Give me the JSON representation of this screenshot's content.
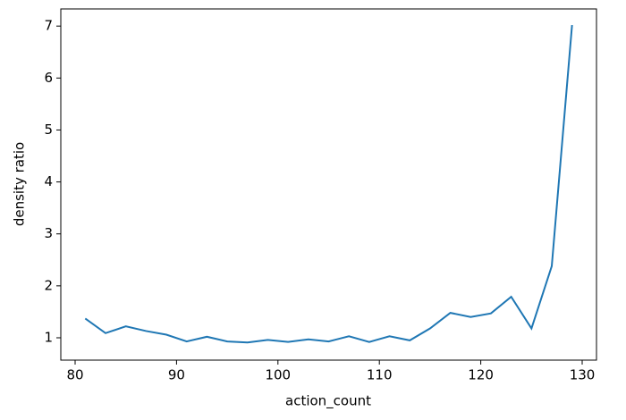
{
  "chart_data": {
    "type": "line",
    "x_label": "action_count",
    "y_label": "density ratio",
    "x": [
      81,
      83,
      85,
      87,
      89,
      91,
      93,
      95,
      97,
      99,
      101,
      103,
      105,
      107,
      109,
      111,
      113,
      115,
      117,
      119,
      121,
      123,
      125,
      127,
      129
    ],
    "series": [
      {
        "color": "#1f77b4",
        "values": [
          1.37,
          1.09,
          1.22,
          1.13,
          1.06,
          0.93,
          1.02,
          0.93,
          0.91,
          0.96,
          0.92,
          0.97,
          0.93,
          1.03,
          0.92,
          1.03,
          0.95,
          1.18,
          1.48,
          1.4,
          1.47,
          1.79,
          1.18,
          2.38,
          7.02
        ]
      }
    ],
    "xlim": [
      78.59,
      131.41
    ],
    "ylim": [
      0.57,
      7.33
    ],
    "xticks": [
      80,
      90,
      100,
      110,
      120,
      130
    ],
    "yticks": [
      1,
      2,
      3,
      4,
      5,
      6,
      7
    ],
    "grid": false
  }
}
